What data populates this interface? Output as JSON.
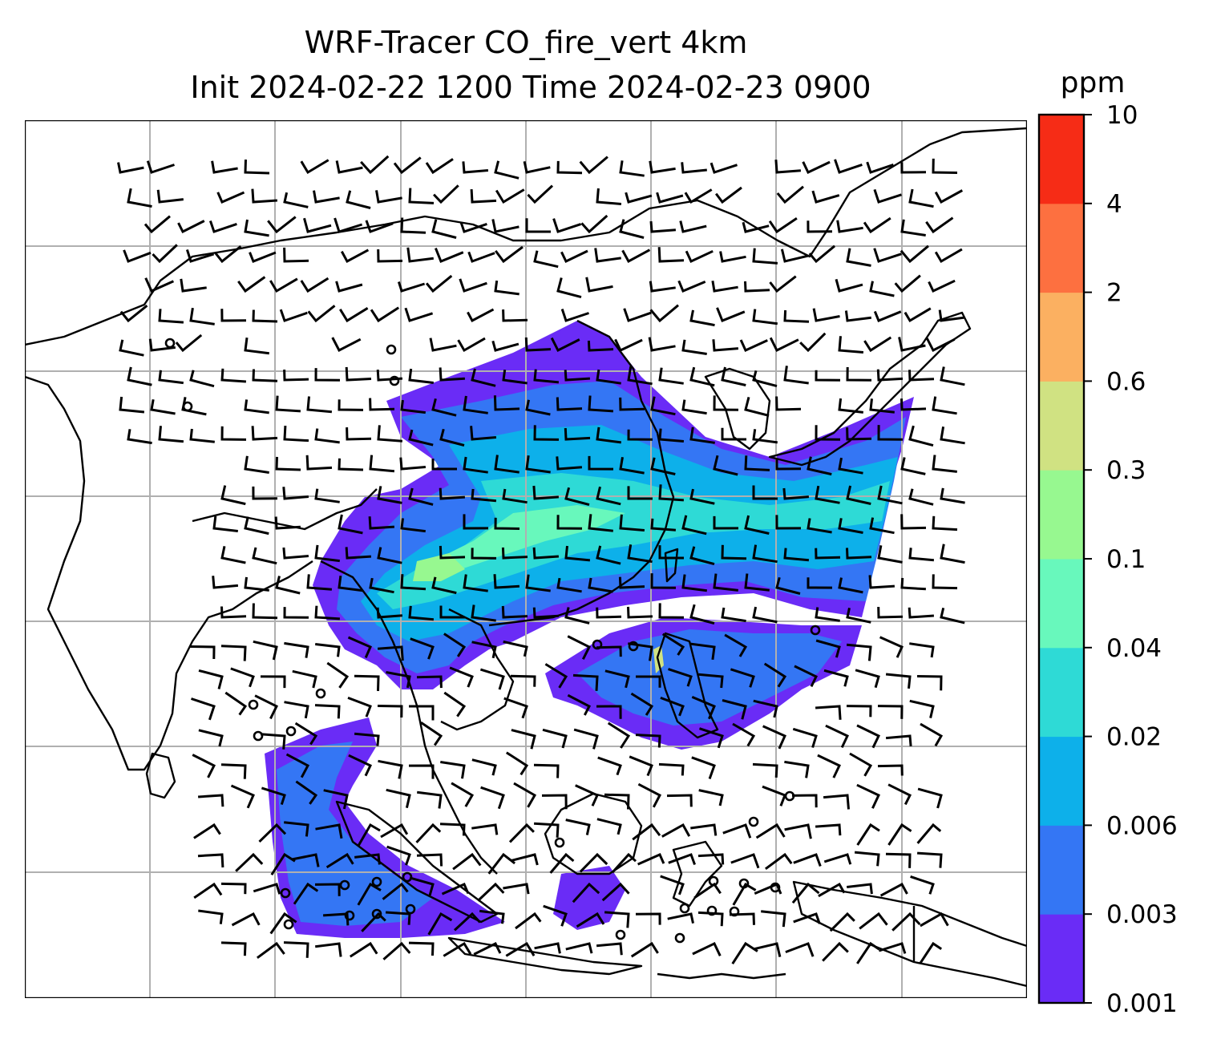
{
  "title": {
    "line1": "WRF-Tracer CO_fire_vert 4km",
    "line2": "Init 2024-02-22 1200 Time 2024-02-23 0900"
  },
  "colorbar": {
    "unit": "ppm",
    "levels": [
      "0.001",
      "0.003",
      "0.006",
      "0.02",
      "0.04",
      "0.1",
      "0.3",
      "0.6",
      "2",
      "4",
      "10"
    ],
    "colors": [
      "#6a2cf6",
      "#3476f4",
      "#0db0ea",
      "#2edad6",
      "#68f8bc",
      "#97f890",
      "#d0e282",
      "#fbb061",
      "#fd7040",
      "#f62c16"
    ]
  },
  "map": {
    "type": "filled-contour-with-wind-barbs",
    "field": "CO_fire_vert",
    "grid_lines": true,
    "land_fill": "white",
    "coastlines": true
  }
}
